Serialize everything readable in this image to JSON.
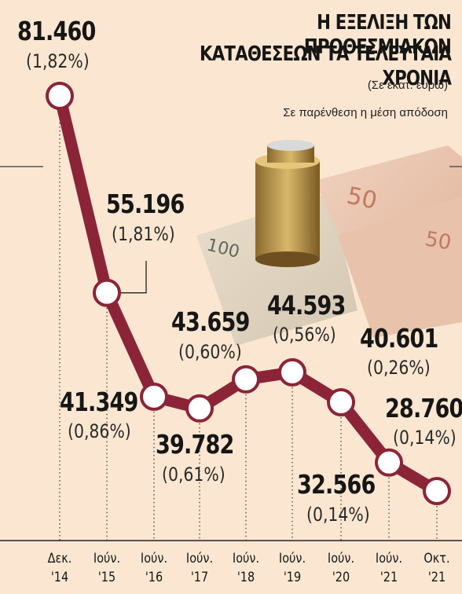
{
  "title_line1": "Η ΕΞΕΛΙΞΗ ΤΩΝ ΠΡΟΘΕΣΜΙΑΚΩΝ",
  "title_line2": "ΚΑΤΑΘΕΣΕΩΝ ΤΑ ΤΕΛΕΥΤΑΙΑ ΧΡΟΝΙΑ",
  "unit_note": "(Σε εκατ. ευρώ)",
  "yield_note": "Σε παρένθεση η μέση απόδοση",
  "colors": {
    "line": "#8c2438",
    "background": "#fbe7d1",
    "marker_fill": "#ffffff"
  },
  "chart_data": {
    "type": "line",
    "categories": [
      [
        "Δεκ.",
        "'14"
      ],
      [
        "Ιούν.",
        "'15"
      ],
      [
        "Ιούν.",
        "'16"
      ],
      [
        "Ιούν.",
        "'17"
      ],
      [
        "Ιούν.",
        "'18"
      ],
      [
        "Ιούν.",
        "'19"
      ],
      [
        "Ιούν.",
        "'20"
      ],
      [
        "Ιούν.",
        "'21"
      ],
      [
        "Οκτ.",
        "'21"
      ]
    ],
    "series": [
      {
        "values": [
          81460,
          55196,
          41349,
          39782,
          43659,
          44593,
          40601,
          32566,
          28760
        ],
        "value_labels": [
          "81.460",
          "55.196",
          "41.349",
          "39.782",
          "43.659",
          "44.593",
          "40.601",
          "32.566",
          "28.760"
        ],
        "yield_labels": [
          "(1,82%)",
          "(1,81%)",
          "(0,86%)",
          "(0,61%)",
          "(0,60%)",
          "(0,56%)",
          "(0,26%)",
          "(0,14%)",
          "(0,14%)"
        ]
      }
    ]
  }
}
